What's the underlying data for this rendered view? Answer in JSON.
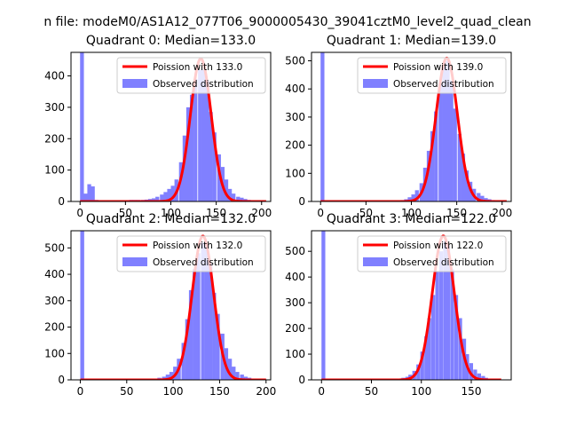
{
  "figure": {
    "suptitle": "n file: modeM0/AS1A12_077T06_9000005430_39041cztM0_level2_quad_clean"
  },
  "colors": {
    "hist": "#8080ff",
    "poisson": "#ff0000",
    "axes": "#000000"
  },
  "chart_data": [
    {
      "type": "bar",
      "title": "Quadrant 0: Median=133.0",
      "median": 133.0,
      "bin_width": 4.2,
      "xlim": [
        -10,
        210
      ],
      "ylim": [
        0,
        475
      ],
      "xticks": [
        0,
        50,
        100,
        150,
        200
      ],
      "yticks": [
        0,
        100,
        200,
        300,
        400
      ],
      "poisson_mean": 133.0,
      "poisson_peak": 455,
      "poisson_sigma": 11.5,
      "poisson_range": [
        0,
        205
      ],
      "legend": {
        "location": "top-right",
        "line_label": "Poission with 133.0",
        "hist_label": "Observed distribution"
      },
      "bins": [
        {
          "x": 0,
          "y": 475
        },
        {
          "x": 4,
          "y": 25
        },
        {
          "x": 8,
          "y": 55
        },
        {
          "x": 12,
          "y": 48
        },
        {
          "x": 16,
          "y": 5
        },
        {
          "x": 20,
          "y": 3
        },
        {
          "x": 25,
          "y": 2
        },
        {
          "x": 29,
          "y": 2
        },
        {
          "x": 33,
          "y": 2
        },
        {
          "x": 37,
          "y": 2
        },
        {
          "x": 41,
          "y": 2
        },
        {
          "x": 46,
          "y": 2
        },
        {
          "x": 50,
          "y": 3
        },
        {
          "x": 54,
          "y": 5
        },
        {
          "x": 58,
          "y": 5
        },
        {
          "x": 62,
          "y": 5
        },
        {
          "x": 67,
          "y": 5
        },
        {
          "x": 71,
          "y": 6
        },
        {
          "x": 75,
          "y": 8
        },
        {
          "x": 79,
          "y": 10
        },
        {
          "x": 83,
          "y": 15
        },
        {
          "x": 88,
          "y": 22
        },
        {
          "x": 92,
          "y": 30
        },
        {
          "x": 96,
          "y": 40
        },
        {
          "x": 100,
          "y": 50
        },
        {
          "x": 104,
          "y": 70
        },
        {
          "x": 109,
          "y": 125
        },
        {
          "x": 113,
          "y": 210
        },
        {
          "x": 117,
          "y": 300
        },
        {
          "x": 121,
          "y": 340
        },
        {
          "x": 125,
          "y": 390
        },
        {
          "x": 130,
          "y": 420
        },
        {
          "x": 134,
          "y": 420
        },
        {
          "x": 138,
          "y": 385
        },
        {
          "x": 142,
          "y": 285
        },
        {
          "x": 146,
          "y": 220
        },
        {
          "x": 151,
          "y": 150
        },
        {
          "x": 155,
          "y": 110
        },
        {
          "x": 159,
          "y": 70
        },
        {
          "x": 163,
          "y": 40
        },
        {
          "x": 167,
          "y": 25
        },
        {
          "x": 172,
          "y": 15
        },
        {
          "x": 176,
          "y": 12
        },
        {
          "x": 180,
          "y": 8
        },
        {
          "x": 184,
          "y": 5
        },
        {
          "x": 188,
          "y": 3
        },
        {
          "x": 193,
          "y": 2
        },
        {
          "x": 197,
          "y": 2
        }
      ]
    },
    {
      "type": "bar",
      "title": "Quadrant 1: Median=139.0",
      "median": 139.0,
      "bin_width": 4.2,
      "xlim": [
        -10,
        210
      ],
      "ylim": [
        0,
        530
      ],
      "xticks": [
        0,
        50,
        100,
        150,
        200
      ],
      "yticks": [
        0,
        100,
        200,
        300,
        400,
        500
      ],
      "poisson_mean": 139.0,
      "poisson_peak": 510,
      "poisson_sigma": 11.8,
      "poisson_range": [
        0,
        205
      ],
      "legend": {
        "location": "top-right",
        "line_label": "Poission with 139.0",
        "hist_label": "Observed distribution"
      },
      "bins": [
        {
          "x": 0,
          "y": 530
        },
        {
          "x": 4,
          "y": 3
        },
        {
          "x": 8,
          "y": 2
        },
        {
          "x": 12,
          "y": 2
        },
        {
          "x": 16,
          "y": 2
        },
        {
          "x": 20,
          "y": 2
        },
        {
          "x": 25,
          "y": 2
        },
        {
          "x": 29,
          "y": 2
        },
        {
          "x": 33,
          "y": 2
        },
        {
          "x": 37,
          "y": 2
        },
        {
          "x": 41,
          "y": 2
        },
        {
          "x": 46,
          "y": 2
        },
        {
          "x": 50,
          "y": 2
        },
        {
          "x": 54,
          "y": 2
        },
        {
          "x": 58,
          "y": 2
        },
        {
          "x": 62,
          "y": 2
        },
        {
          "x": 67,
          "y": 2
        },
        {
          "x": 71,
          "y": 2
        },
        {
          "x": 75,
          "y": 2
        },
        {
          "x": 79,
          "y": 2
        },
        {
          "x": 83,
          "y": 3
        },
        {
          "x": 88,
          "y": 5
        },
        {
          "x": 92,
          "y": 8
        },
        {
          "x": 96,
          "y": 15
        },
        {
          "x": 100,
          "y": 25
        },
        {
          "x": 104,
          "y": 40
        },
        {
          "x": 109,
          "y": 65
        },
        {
          "x": 113,
          "y": 120
        },
        {
          "x": 117,
          "y": 180
        },
        {
          "x": 121,
          "y": 250
        },
        {
          "x": 125,
          "y": 320
        },
        {
          "x": 130,
          "y": 420
        },
        {
          "x": 134,
          "y": 480
        },
        {
          "x": 138,
          "y": 500
        },
        {
          "x": 142,
          "y": 430
        },
        {
          "x": 146,
          "y": 330
        },
        {
          "x": 151,
          "y": 240
        },
        {
          "x": 155,
          "y": 170
        },
        {
          "x": 159,
          "y": 110
        },
        {
          "x": 163,
          "y": 70
        },
        {
          "x": 167,
          "y": 45
        },
        {
          "x": 172,
          "y": 30
        },
        {
          "x": 176,
          "y": 20
        },
        {
          "x": 180,
          "y": 12
        },
        {
          "x": 184,
          "y": 8
        },
        {
          "x": 188,
          "y": 5
        },
        {
          "x": 193,
          "y": 3
        }
      ]
    },
    {
      "type": "bar",
      "title": "Quadrant 2: Median=132.0",
      "median": 132.0,
      "bin_width": 4.2,
      "xlim": [
        -10,
        205
      ],
      "ylim": [
        0,
        565
      ],
      "xticks": [
        0,
        50,
        100,
        150,
        200
      ],
      "yticks": [
        0,
        100,
        200,
        300,
        400,
        500
      ],
      "poisson_mean": 132.0,
      "poisson_peak": 545,
      "poisson_sigma": 11.5,
      "poisson_range": [
        0,
        200
      ],
      "legend": {
        "location": "top-right",
        "line_label": "Poission with 132.0",
        "hist_label": "Observed distribution"
      },
      "bins": [
        {
          "x": 0,
          "y": 565
        },
        {
          "x": 4,
          "y": 2
        },
        {
          "x": 8,
          "y": 2
        },
        {
          "x": 12,
          "y": 2
        },
        {
          "x": 16,
          "y": 2
        },
        {
          "x": 20,
          "y": 2
        },
        {
          "x": 25,
          "y": 2
        },
        {
          "x": 29,
          "y": 2
        },
        {
          "x": 33,
          "y": 2
        },
        {
          "x": 37,
          "y": 2
        },
        {
          "x": 41,
          "y": 2
        },
        {
          "x": 46,
          "y": 2
        },
        {
          "x": 50,
          "y": 2
        },
        {
          "x": 54,
          "y": 2
        },
        {
          "x": 58,
          "y": 2
        },
        {
          "x": 62,
          "y": 2
        },
        {
          "x": 67,
          "y": 2
        },
        {
          "x": 71,
          "y": 2
        },
        {
          "x": 75,
          "y": 3
        },
        {
          "x": 79,
          "y": 5
        },
        {
          "x": 83,
          "y": 8
        },
        {
          "x": 88,
          "y": 12
        },
        {
          "x": 92,
          "y": 20
        },
        {
          "x": 96,
          "y": 30
        },
        {
          "x": 100,
          "y": 50
        },
        {
          "x": 104,
          "y": 80
        },
        {
          "x": 109,
          "y": 140
        },
        {
          "x": 113,
          "y": 230
        },
        {
          "x": 117,
          "y": 340
        },
        {
          "x": 121,
          "y": 420
        },
        {
          "x": 125,
          "y": 480
        },
        {
          "x": 130,
          "y": 520
        },
        {
          "x": 134,
          "y": 510
        },
        {
          "x": 138,
          "y": 440
        },
        {
          "x": 142,
          "y": 330
        },
        {
          "x": 146,
          "y": 250
        },
        {
          "x": 151,
          "y": 175
        },
        {
          "x": 155,
          "y": 120
        },
        {
          "x": 159,
          "y": 80
        },
        {
          "x": 163,
          "y": 50
        },
        {
          "x": 167,
          "y": 30
        },
        {
          "x": 172,
          "y": 20
        },
        {
          "x": 176,
          "y": 12
        },
        {
          "x": 180,
          "y": 8
        },
        {
          "x": 184,
          "y": 5
        },
        {
          "x": 188,
          "y": 3
        }
      ]
    },
    {
      "type": "bar",
      "title": "Quadrant 3: Median=122.0",
      "median": 122.0,
      "bin_width": 3.8,
      "xlim": [
        -10,
        190
      ],
      "ylim": [
        0,
        580
      ],
      "xticks": [
        0,
        50,
        100,
        150
      ],
      "yticks": [
        0,
        100,
        200,
        300,
        400,
        500
      ],
      "poisson_mean": 122.0,
      "poisson_peak": 560,
      "poisson_sigma": 11.0,
      "poisson_range": [
        0,
        180
      ],
      "legend": {
        "location": "top-right",
        "line_label": "Poission with 122.0",
        "hist_label": "Observed distribution"
      },
      "bins": [
        {
          "x": 0,
          "y": 580
        },
        {
          "x": 4,
          "y": 2
        },
        {
          "x": 8,
          "y": 2
        },
        {
          "x": 11,
          "y": 2
        },
        {
          "x": 15,
          "y": 2
        },
        {
          "x": 19,
          "y": 2
        },
        {
          "x": 23,
          "y": 2
        },
        {
          "x": 27,
          "y": 2
        },
        {
          "x": 30,
          "y": 2
        },
        {
          "x": 34,
          "y": 2
        },
        {
          "x": 38,
          "y": 2
        },
        {
          "x": 42,
          "y": 2
        },
        {
          "x": 46,
          "y": 2
        },
        {
          "x": 49,
          "y": 2
        },
        {
          "x": 53,
          "y": 2
        },
        {
          "x": 57,
          "y": 2
        },
        {
          "x": 61,
          "y": 2
        },
        {
          "x": 65,
          "y": 2
        },
        {
          "x": 68,
          "y": 2
        },
        {
          "x": 72,
          "y": 3
        },
        {
          "x": 76,
          "y": 5
        },
        {
          "x": 80,
          "y": 8
        },
        {
          "x": 84,
          "y": 12
        },
        {
          "x": 87,
          "y": 20
        },
        {
          "x": 91,
          "y": 35
        },
        {
          "x": 95,
          "y": 60
        },
        {
          "x": 99,
          "y": 110
        },
        {
          "x": 103,
          "y": 170
        },
        {
          "x": 106,
          "y": 240
        },
        {
          "x": 110,
          "y": 330
        },
        {
          "x": 114,
          "y": 420
        },
        {
          "x": 118,
          "y": 500
        },
        {
          "x": 122,
          "y": 540
        },
        {
          "x": 125,
          "y": 520
        },
        {
          "x": 129,
          "y": 430
        },
        {
          "x": 133,
          "y": 330
        },
        {
          "x": 137,
          "y": 240
        },
        {
          "x": 141,
          "y": 160
        },
        {
          "x": 144,
          "y": 100
        },
        {
          "x": 148,
          "y": 65
        },
        {
          "x": 152,
          "y": 40
        },
        {
          "x": 156,
          "y": 25
        },
        {
          "x": 160,
          "y": 15
        },
        {
          "x": 163,
          "y": 8
        },
        {
          "x": 167,
          "y": 5
        },
        {
          "x": 171,
          "y": 3
        }
      ]
    }
  ]
}
